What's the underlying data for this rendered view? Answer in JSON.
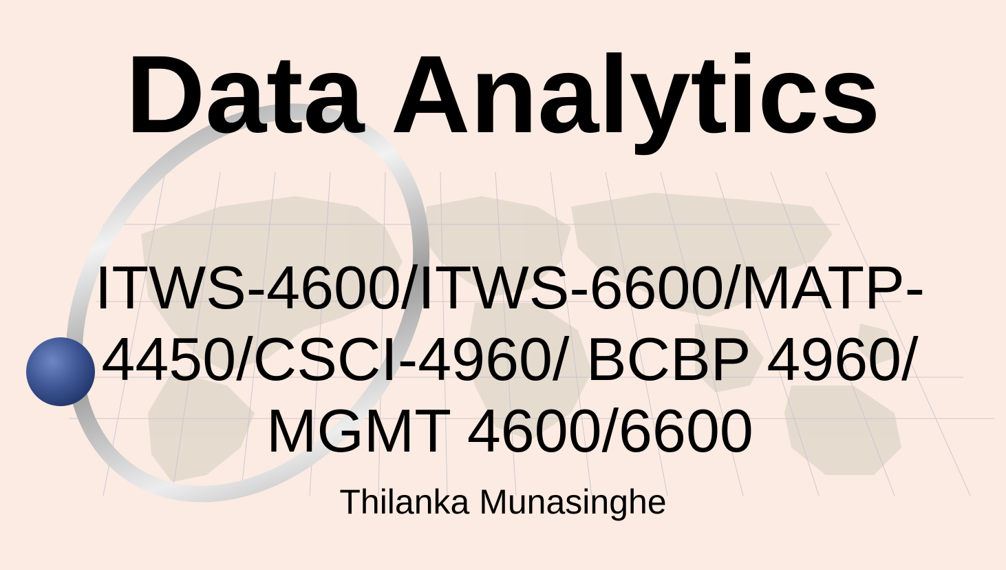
{
  "slide": {
    "title": "Data Analytics",
    "subtitle": "ITWS-4600/ITWS-6600/MATP-4450/CSCI-4960/ BCBP 4960/ MGMT 4600/6600",
    "author": "Thilanka Munasinghe"
  },
  "decoration": {
    "background_color": "#fcebe2",
    "map_color": "#e4dacd",
    "grid_color": "#c9c3cf",
    "ring_color": "#b8b8b8",
    "sphere_color": "#3e5694"
  }
}
